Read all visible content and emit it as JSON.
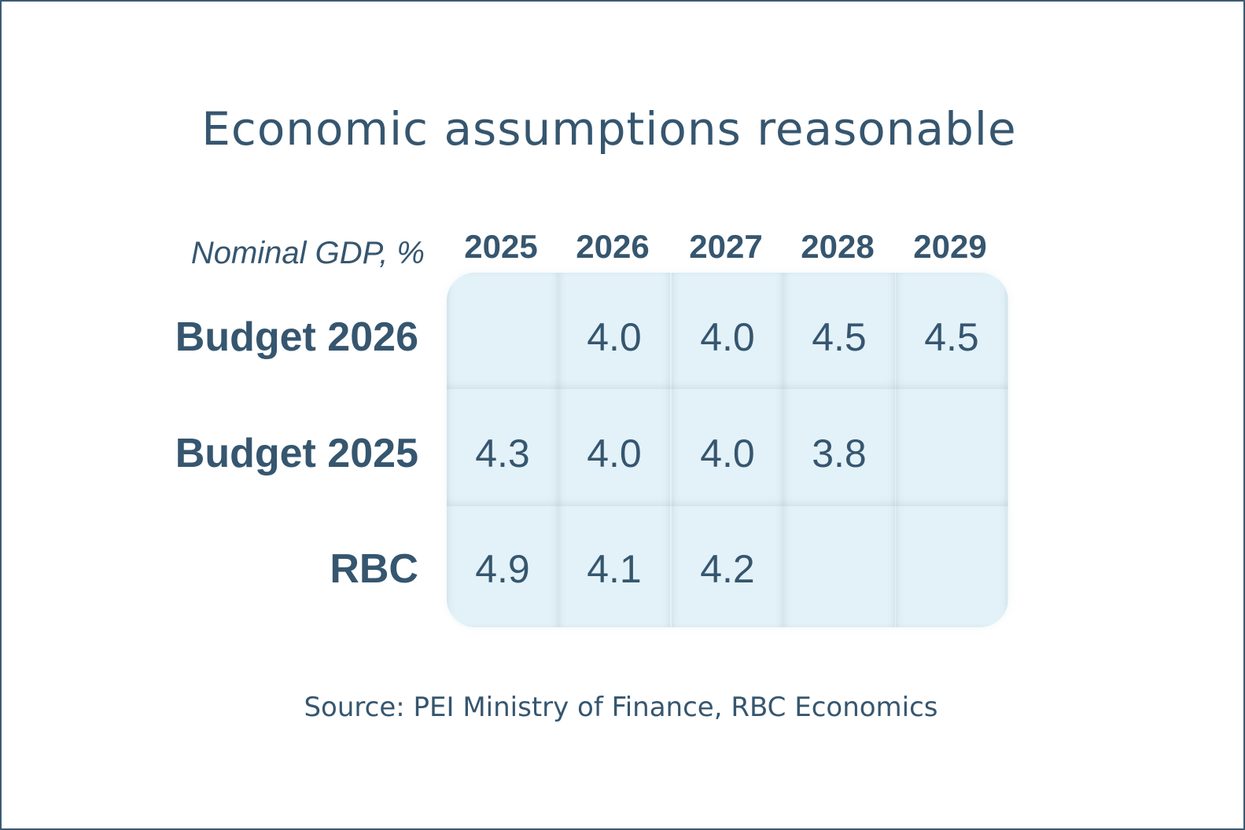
{
  "title": "Economic assumptions reasonable",
  "source": "Source: PEI Ministry of Finance, RBC Economics",
  "colors": {
    "text": "#36566f",
    "table_bg": "#e3f2f8",
    "border": "#3d5a73"
  },
  "chart_data": {
    "type": "table",
    "title": "Economic assumptions reasonable",
    "unit_label": "Nominal GDP, %",
    "columns": [
      "2025",
      "2026",
      "2027",
      "2028",
      "2029"
    ],
    "rows": [
      {
        "label": "Budget 2026",
        "values": [
          "",
          "4.0",
          "4.0",
          "4.5",
          "4.5"
        ]
      },
      {
        "label": "Budget 2025",
        "values": [
          "4.3",
          "4.0",
          "4.0",
          "3.8",
          ""
        ]
      },
      {
        "label": "RBC",
        "values": [
          "4.9",
          "4.1",
          "4.2",
          "",
          ""
        ]
      }
    ]
  }
}
